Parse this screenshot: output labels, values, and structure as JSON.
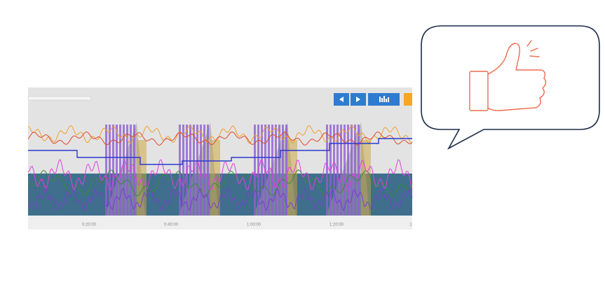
{
  "timeline": {
    "labels": [
      "0:20:00",
      "0:40:00",
      "1:00:00",
      "1:20:00",
      "1"
    ]
  }
}
